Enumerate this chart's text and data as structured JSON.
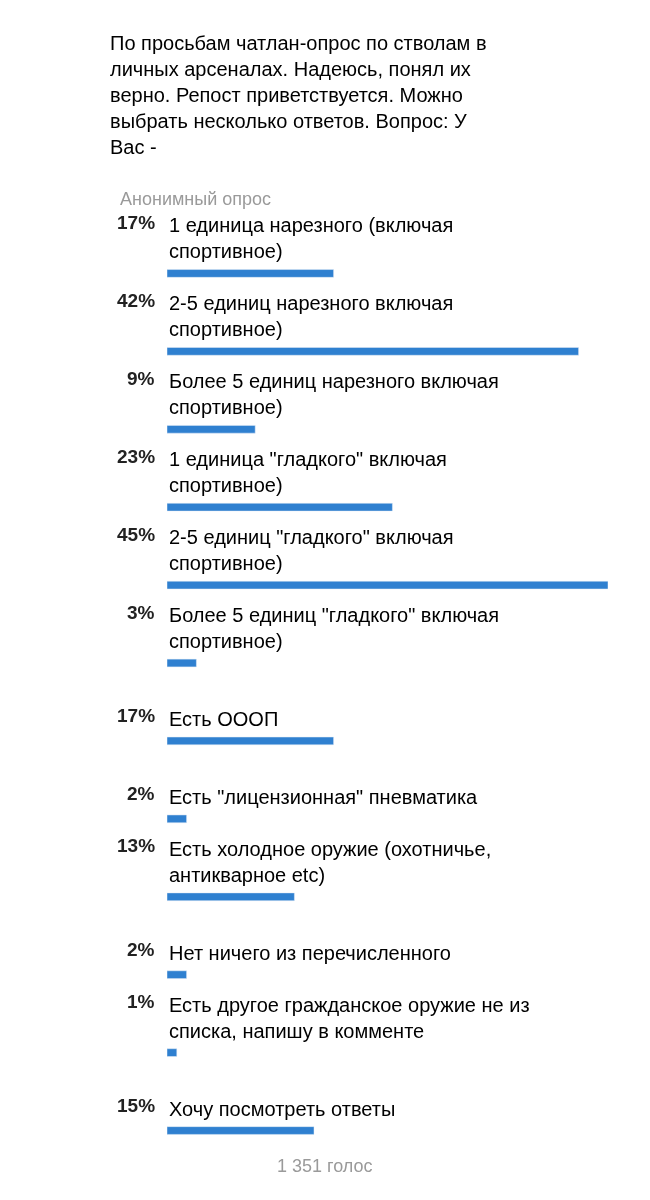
{
  "chart_data": {
    "type": "bar",
    "orientation": "horizontal",
    "title": "По просьбам чатлан-опрос по стволам в личных арсеналах. Надеюсь, понял их верно. Репост приветствуется. Можно выбрать несколько ответов. Вопрос: У Вас -",
    "subtitle": "Анонимный опрос",
    "categories": [
      "1 единица нарезного (включая спортивное)",
      "2-5 единиц нарезного включая спортивное)",
      "Более 5 единиц нарезного включая спортивное)",
      "1 единица \"гладкого\" включая спортивное)",
      "2-5 единиц \"гладкого\" включая спортивное)",
      "Более 5 единиц \"гладкого\" включая спортивное)",
      "Есть ОООП",
      "Есть \"лицензионная\" пневматика",
      "Есть холодное оружие (охотничье, антикварное etc)",
      "Нет ничего из перечисленного",
      "Есть другое гражданское оружие не из списка, напишу в комменте",
      "Хочу посмотреть ответы"
    ],
    "values": [
      17,
      42,
      9,
      23,
      45,
      3,
      17,
      2,
      13,
      2,
      1,
      15
    ],
    "value_labels": [
      "17%",
      "42%",
      "9%",
      "23%",
      "45%",
      "3%",
      "17%",
      "2%",
      "13%",
      "2%",
      "1%",
      "15%"
    ],
    "color": "#2f80d0",
    "xlim": [
      0,
      45
    ],
    "annotations": [
      "1 351 голос"
    ]
  }
}
